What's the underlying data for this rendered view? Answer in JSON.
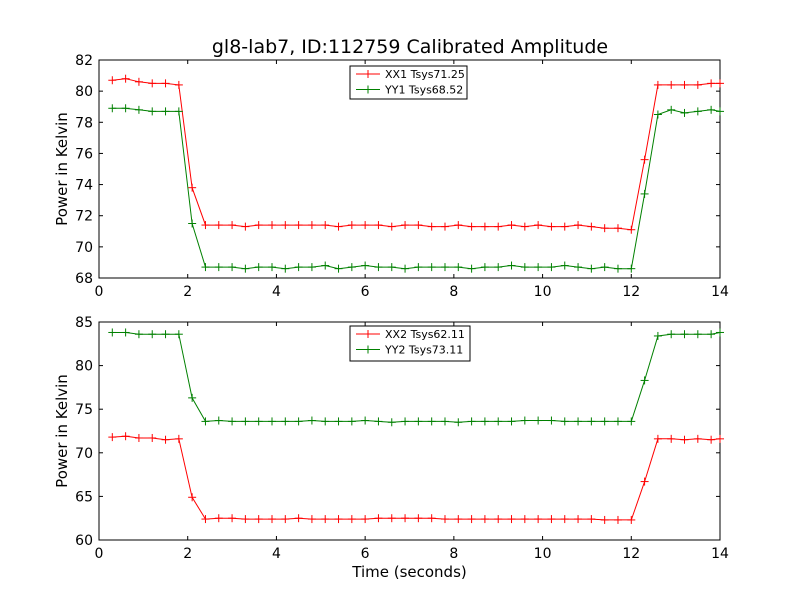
{
  "figure": {
    "title": "gl8-lab7, ID:112759 Calibrated Amplitude"
  },
  "chart_data": [
    {
      "type": "line",
      "title": "gl8-lab7, ID:112759 Calibrated Amplitude",
      "xlabel": "",
      "ylabel": "Power in Kelvin",
      "xlim": [
        0,
        14
      ],
      "ylim": [
        68,
        82
      ],
      "xticks": [
        0,
        2,
        4,
        6,
        8,
        10,
        12,
        14
      ],
      "yticks": [
        68,
        70,
        72,
        74,
        76,
        78,
        80,
        82
      ],
      "grid": false,
      "legend_position": "top-center",
      "x": [
        0.3,
        0.6,
        0.9,
        1.2,
        1.5,
        1.8,
        2.1,
        2.4,
        2.7,
        3.0,
        3.3,
        3.6,
        3.9,
        4.2,
        4.5,
        4.8,
        5.1,
        5.4,
        5.7,
        6.0,
        6.3,
        6.6,
        6.9,
        7.2,
        7.5,
        7.8,
        8.1,
        8.4,
        8.7,
        9.0,
        9.3,
        9.6,
        9.9,
        10.2,
        10.5,
        10.8,
        11.1,
        11.4,
        11.7,
        12.0,
        12.3,
        12.6,
        12.9,
        13.2,
        13.5,
        13.8,
        14.0
      ],
      "series": [
        {
          "name": "XX1 Tsys71.25",
          "color": "#ff0000",
          "values": [
            80.7,
            80.8,
            80.6,
            80.5,
            80.5,
            80.4,
            73.8,
            71.4,
            71.4,
            71.4,
            71.3,
            71.4,
            71.4,
            71.4,
            71.4,
            71.4,
            71.4,
            71.3,
            71.4,
            71.4,
            71.4,
            71.3,
            71.4,
            71.4,
            71.3,
            71.3,
            71.4,
            71.3,
            71.3,
            71.3,
            71.4,
            71.3,
            71.4,
            71.3,
            71.3,
            71.4,
            71.3,
            71.2,
            71.2,
            71.1,
            75.6,
            80.4,
            80.4,
            80.4,
            80.4,
            80.5,
            80.5
          ]
        },
        {
          "name": "YY1 Tsys68.52",
          "color": "#008000",
          "values": [
            78.9,
            78.9,
            78.8,
            78.7,
            78.7,
            78.7,
            71.5,
            68.7,
            68.7,
            68.7,
            68.6,
            68.7,
            68.7,
            68.6,
            68.7,
            68.7,
            68.8,
            68.6,
            68.7,
            68.8,
            68.7,
            68.7,
            68.6,
            68.7,
            68.7,
            68.7,
            68.7,
            68.6,
            68.7,
            68.7,
            68.8,
            68.7,
            68.7,
            68.7,
            68.8,
            68.7,
            68.6,
            68.7,
            68.6,
            68.6,
            73.4,
            78.5,
            78.8,
            78.6,
            78.7,
            78.8,
            78.7
          ]
        }
      ]
    },
    {
      "type": "line",
      "title": "",
      "xlabel": "Time (seconds)",
      "ylabel": "Power in Kelvin",
      "xlim": [
        0,
        14
      ],
      "ylim": [
        60,
        85
      ],
      "xticks": [
        0,
        2,
        4,
        6,
        8,
        10,
        12,
        14
      ],
      "yticks": [
        60,
        65,
        70,
        75,
        80,
        85
      ],
      "grid": false,
      "legend_position": "top-center",
      "x": [
        0.3,
        0.6,
        0.9,
        1.2,
        1.5,
        1.8,
        2.1,
        2.4,
        2.7,
        3.0,
        3.3,
        3.6,
        3.9,
        4.2,
        4.5,
        4.8,
        5.1,
        5.4,
        5.7,
        6.0,
        6.3,
        6.6,
        6.9,
        7.2,
        7.5,
        7.8,
        8.1,
        8.4,
        8.7,
        9.0,
        9.3,
        9.6,
        9.9,
        10.2,
        10.5,
        10.8,
        11.1,
        11.4,
        11.7,
        12.0,
        12.3,
        12.6,
        12.9,
        13.2,
        13.5,
        13.8,
        14.0
      ],
      "series": [
        {
          "name": "XX2 Tsys62.11",
          "color": "#ff0000",
          "values": [
            71.8,
            71.9,
            71.7,
            71.7,
            71.5,
            71.6,
            64.9,
            62.4,
            62.5,
            62.5,
            62.4,
            62.4,
            62.4,
            62.4,
            62.5,
            62.4,
            62.4,
            62.4,
            62.4,
            62.4,
            62.5,
            62.5,
            62.5,
            62.5,
            62.5,
            62.4,
            62.4,
            62.4,
            62.4,
            62.4,
            62.4,
            62.4,
            62.4,
            62.4,
            62.4,
            62.4,
            62.4,
            62.3,
            62.3,
            62.3,
            66.7,
            71.6,
            71.6,
            71.5,
            71.6,
            71.5,
            71.6
          ]
        },
        {
          "name": "YY2 Tsys73.11",
          "color": "#008000",
          "values": [
            83.8,
            83.8,
            83.6,
            83.6,
            83.6,
            83.6,
            76.3,
            73.6,
            73.7,
            73.6,
            73.6,
            73.6,
            73.6,
            73.6,
            73.6,
            73.7,
            73.6,
            73.6,
            73.6,
            73.7,
            73.6,
            73.5,
            73.6,
            73.6,
            73.6,
            73.6,
            73.5,
            73.6,
            73.6,
            73.6,
            73.6,
            73.7,
            73.7,
            73.7,
            73.6,
            73.6,
            73.6,
            73.6,
            73.6,
            73.6,
            78.3,
            83.4,
            83.6,
            83.6,
            83.6,
            83.6,
            83.8
          ]
        }
      ]
    }
  ]
}
